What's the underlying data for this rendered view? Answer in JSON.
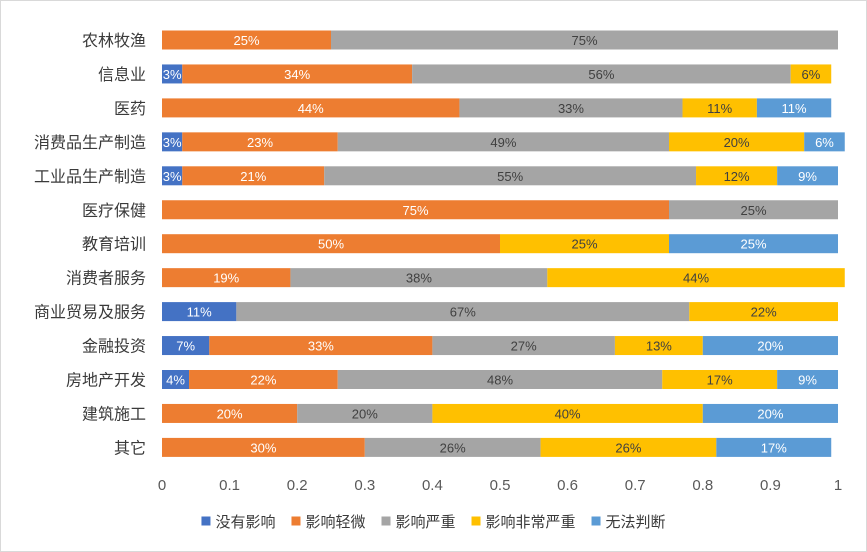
{
  "chart_data": {
    "type": "bar",
    "orientation": "horizontal",
    "stacked": true,
    "title": "",
    "xlabel": "",
    "ylabel": "",
    "xlim": [
      0,
      1
    ],
    "x_ticks": [
      "0",
      "0.1",
      "0.2",
      "0.3",
      "0.4",
      "0.5",
      "0.6",
      "0.7",
      "0.8",
      "0.9",
      "1"
    ],
    "grid": false,
    "legend_position": "bottom",
    "categories": [
      "农林牧渔",
      "信息业",
      "医药",
      "消费品生产制造",
      "工业品生产制造",
      "医疗保健",
      "教育培训",
      "消费者服务",
      "商业贸易及服务",
      "金融投资",
      "房地产开发",
      "建筑施工",
      "其它"
    ],
    "series": [
      {
        "name": "没有影响",
        "color": "#4472c4",
        "label_color": "#ffffff",
        "values": [
          0,
          0.03,
          0,
          0.03,
          0.03,
          0,
          0,
          0,
          0.11,
          0.07,
          0.04,
          0,
          0
        ],
        "labels": [
          "",
          "3%",
          "",
          "3%",
          "3%",
          "",
          "",
          "",
          "11%",
          "7%",
          "4%",
          "",
          ""
        ]
      },
      {
        "name": "影响轻微",
        "color": "#ed7d31",
        "label_color": "#ffffff",
        "values": [
          0.25,
          0.34,
          0.44,
          0.23,
          0.21,
          0.75,
          0.5,
          0.19,
          0,
          0.33,
          0.22,
          0.2,
          0.3
        ],
        "labels": [
          "25%",
          "34%",
          "44%",
          "23%",
          "21%",
          "75%",
          "50%",
          "19%",
          "",
          "33%",
          "22%",
          "20%",
          "30%"
        ]
      },
      {
        "name": "影响严重",
        "color": "#a5a5a5",
        "label_color": "#404040",
        "values": [
          0.75,
          0.56,
          0.33,
          0.49,
          0.55,
          0.25,
          0,
          0.38,
          0.67,
          0.27,
          0.48,
          0.2,
          0.26
        ],
        "labels": [
          "75%",
          "56%",
          "33%",
          "49%",
          "55%",
          "25%",
          "",
          "38%",
          "67%",
          "27%",
          "48%",
          "20%",
          "26%"
        ]
      },
      {
        "name": "影响非常严重",
        "color": "#ffc000",
        "label_color": "#404040",
        "values": [
          0,
          0.06,
          0.11,
          0.2,
          0.12,
          0,
          0.25,
          0.44,
          0.22,
          0.13,
          0.17,
          0.4,
          0.26
        ],
        "labels": [
          "",
          "6%",
          "11%",
          "20%",
          "12%",
          "",
          "25%",
          "44%",
          "22%",
          "13%",
          "17%",
          "40%",
          "26%"
        ]
      },
      {
        "name": "无法判断",
        "color": "#5b9bd5",
        "label_color": "#ffffff",
        "values": [
          0,
          0,
          0.11,
          0.06,
          0.09,
          0,
          0.25,
          0,
          0,
          0.2,
          0.09,
          0.2,
          0.17
        ],
        "labels": [
          "",
          "",
          "11%",
          "6%",
          "9%",
          "",
          "25%",
          "",
          "",
          "20%",
          "9%",
          "20%",
          "17%"
        ]
      }
    ]
  }
}
